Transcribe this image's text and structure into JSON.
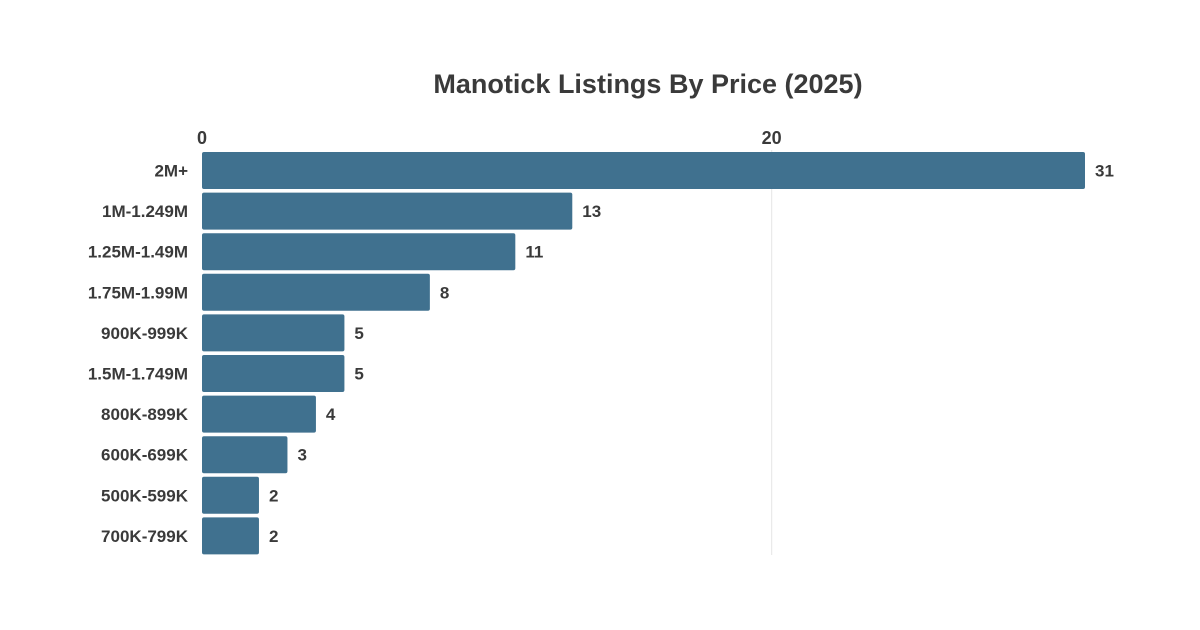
{
  "chart_data": {
    "type": "bar",
    "orientation": "horizontal",
    "title": "Manotick Listings By Price (2025)",
    "categories": [
      "2M+",
      "1M-1.249M",
      "1.25M-1.49M",
      "1.75M-1.99M",
      "900K-999K",
      "1.5M-1.749M",
      "800K-899K",
      "600K-699K",
      "500K-599K",
      "700K-799K"
    ],
    "values": [
      31,
      13,
      11,
      8,
      5,
      5,
      4,
      3,
      2,
      2
    ],
    "xlim": [
      0,
      31
    ],
    "x_ticks": [
      0,
      20
    ],
    "tick_labels": [
      "0",
      "20"
    ],
    "value_labels": [
      "31",
      "13",
      "11",
      "8",
      "5",
      "5",
      "4",
      "3",
      "2",
      "2"
    ],
    "axis_position": "top",
    "grid": true,
    "colors": {
      "bar": "#40718f",
      "gridline": "#e6e6e6",
      "text": "#3a3a3a"
    }
  }
}
